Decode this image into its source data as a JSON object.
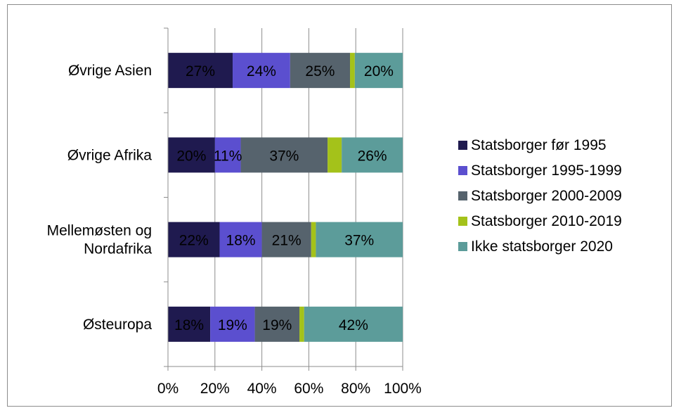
{
  "chart_data": {
    "type": "bar",
    "orientation": "horizontal",
    "stacked": "percent",
    "categories": [
      "Østeuropa",
      "Mellemøsten og Nordafrika",
      "Øvrige Afrika",
      "Øvrige Asien"
    ],
    "category_lines": [
      [
        "Østeuropa"
      ],
      [
        "Mellemøsten og",
        "Nordafrika"
      ],
      [
        "Øvrige Afrika"
      ],
      [
        "Øvrige Asien"
      ]
    ],
    "series": [
      {
        "name": "Statsborger før 1995",
        "color": "#1f1a4f",
        "values": [
          18,
          22,
          20,
          27
        ],
        "labels": [
          "18%",
          "22%",
          "20%",
          "27%"
        ]
      },
      {
        "name": "Statsborger 1995-1999",
        "color": "#5b4fcf",
        "values": [
          19,
          18,
          11,
          24
        ],
        "labels": [
          "19%",
          "18%",
          "11%",
          "24%"
        ]
      },
      {
        "name": "Statsborger 2000-2009",
        "color": "#56636d",
        "values": [
          19,
          21,
          37,
          25
        ],
        "labels": [
          "19%",
          "21%",
          "37%",
          "25%"
        ]
      },
      {
        "name": "Statsborger 2010-2019",
        "color": "#a4c21a",
        "values": [
          2,
          2,
          6,
          2
        ],
        "labels": [
          "",
          "",
          "",
          ""
        ]
      },
      {
        "name": "Ikke statsborger 2020",
        "color": "#5c9c9a",
        "values": [
          42,
          37,
          26,
          20
        ],
        "labels": [
          "42%",
          "37%",
          "26%",
          "20%"
        ]
      }
    ],
    "xlim": [
      0,
      100
    ],
    "xticks": [
      0,
      20,
      40,
      60,
      80,
      100
    ],
    "xtick_labels": [
      "0%",
      "20%",
      "40%",
      "60%",
      "80%",
      "100%"
    ],
    "grid": "vertical",
    "legend_position": "right"
  }
}
